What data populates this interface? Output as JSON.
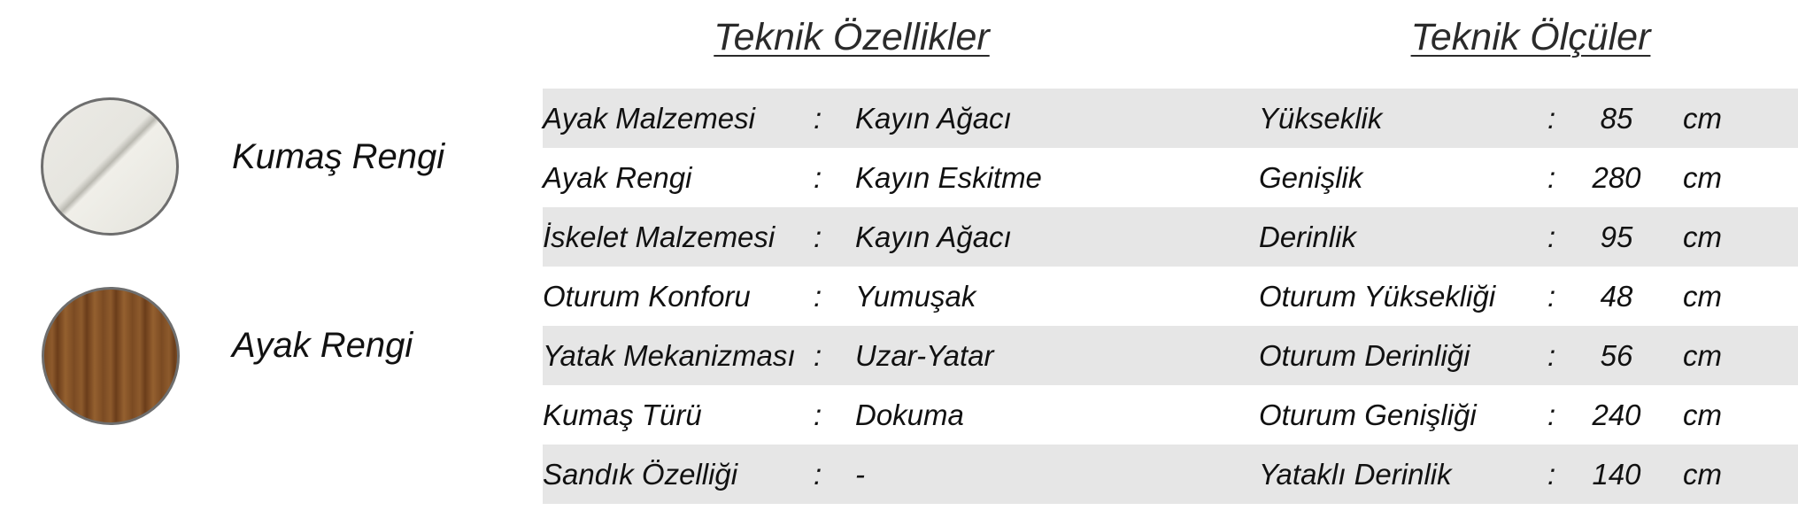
{
  "swatches": [
    {
      "label": "Kumaş Rengi",
      "color": "#e9e8e2"
    },
    {
      "label": "Ayak Rengi",
      "color": "#7d4c23"
    }
  ],
  "specs": {
    "title": "Teknik Özellikler",
    "rows": [
      {
        "label": "Ayak Malzemesi",
        "sep": ":",
        "value": "Kayın Ağacı"
      },
      {
        "label": "Ayak Rengi",
        "sep": ":",
        "value": "Kayın Eskitme"
      },
      {
        "label": "İskelet Malzemesi",
        "sep": ":",
        "value": "Kayın Ağacı"
      },
      {
        "label": "Oturum Konforu",
        "sep": ":",
        "value": "Yumuşak"
      },
      {
        "label": "Yatak Mekanizması",
        "sep": ":",
        "value": "Uzar-Yatar"
      },
      {
        "label": "Kumaş Türü",
        "sep": ":",
        "value": "Dokuma"
      },
      {
        "label": "Sandık Özelliği",
        "sep": ":",
        "value": "-"
      }
    ]
  },
  "dimensions": {
    "title": "Teknik Ölçüler",
    "rows": [
      {
        "label": "Yükseklik",
        "sep": ":",
        "value": "85",
        "unit": "cm"
      },
      {
        "label": "Genişlik",
        "sep": ":",
        "value": "280",
        "unit": "cm"
      },
      {
        "label": "Derinlik",
        "sep": ":",
        "value": "95",
        "unit": "cm"
      },
      {
        "label": "Oturum Yüksekliği",
        "sep": ":",
        "value": "48",
        "unit": "cm"
      },
      {
        "label": "Oturum Derinliği",
        "sep": ":",
        "value": "56",
        "unit": "cm"
      },
      {
        "label": "Oturum Genişliği",
        "sep": ":",
        "value": "240",
        "unit": "cm"
      },
      {
        "label": "Yataklı Derinlik",
        "sep": ":",
        "value": "140",
        "unit": "cm"
      }
    ]
  },
  "row_shade": "#e6e6e6"
}
